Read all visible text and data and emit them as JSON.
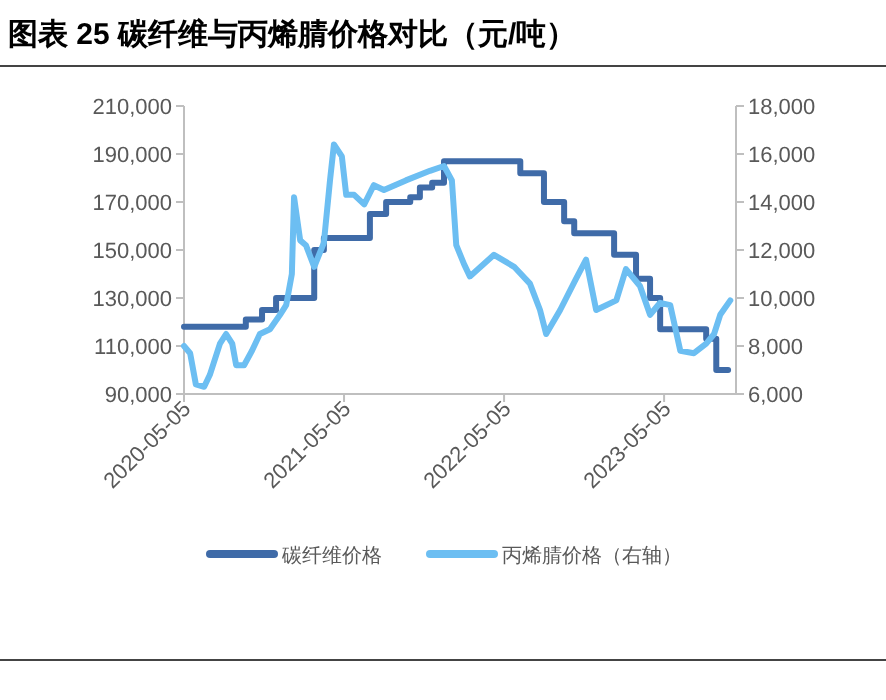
{
  "chart_data": {
    "type": "line",
    "title": "图表 25 碳纤维与丙烯腈价格对比（元/吨）",
    "xlim": [
      "2020-05-05",
      "2023-10-16"
    ],
    "xticks": [
      "2020-05-05",
      "2021-05-05",
      "2022-05-05",
      "2023-05-05"
    ],
    "ylim": [
      90000,
      210000
    ],
    "yticks": [
      {
        "value": 90000,
        "label": "90,000"
      },
      {
        "value": 110000,
        "label": "110,000"
      },
      {
        "value": 130000,
        "label": "130,000"
      },
      {
        "value": 150000,
        "label": "150,000"
      },
      {
        "value": 170000,
        "label": "170,000"
      },
      {
        "value": 190000,
        "label": "190,000"
      },
      {
        "value": 210000,
        "label": "210,000"
      }
    ],
    "y2lim": [
      6000,
      18000
    ],
    "y2ticks": [
      {
        "value": 6000,
        "label": "6,000"
      },
      {
        "value": 8000,
        "label": "8,000"
      },
      {
        "value": 10000,
        "label": "10,000"
      },
      {
        "value": 12000,
        "label": "12,000"
      },
      {
        "value": 14000,
        "label": "14,000"
      },
      {
        "value": 16000,
        "label": "16,000"
      },
      {
        "value": 18000,
        "label": "18,000"
      }
    ],
    "grid": false,
    "legend": "bottom",
    "series": [
      {
        "name": "碳纤维价格",
        "type": "step",
        "color": "#3f6ba8",
        "x": [
          "2020-05-05",
          "2020-09-23",
          "2020-10-30",
          "2020-12-01",
          "2021-02-26",
          "2021-03-20",
          "2021-07-03",
          "2021-08-09",
          "2021-10-03",
          "2021-10-25",
          "2021-11-22",
          "2021-12-19",
          "2022-06-11",
          "2022-08-04",
          "2022-09-19",
          "2022-10-12",
          "2023-01-11",
          "2023-03-02",
          "2023-04-03",
          "2023-04-26",
          "2023-08-09",
          "2023-09-01",
          "2023-09-28"
        ],
        "values": [
          118000,
          121000,
          125000,
          130000,
          150000,
          155000,
          165000,
          170000,
          172000,
          176000,
          178000,
          187000,
          182000,
          170000,
          162000,
          157000,
          148000,
          138000,
          130000,
          117000,
          113000,
          100000,
          100000
        ]
      },
      {
        "name": "丙烯腈价格（右轴）",
        "axis": "y2",
        "color": "#6cbef2",
        "x": [
          "2020-05-05",
          "2020-05-19",
          "2020-06-01",
          "2020-06-20",
          "2020-07-03",
          "2020-07-26",
          "2020-08-09",
          "2020-08-23",
          "2020-09-01",
          "2020-09-19",
          "2020-10-07",
          "2020-10-25",
          "2020-11-17",
          "2020-12-10",
          "2020-12-24",
          "2021-01-06",
          "2021-01-11",
          "2021-01-25",
          "2021-02-07",
          "2021-02-26",
          "2021-03-20",
          "2021-04-03",
          "2021-04-12",
          "2021-04-30",
          "2021-05-10",
          "2021-05-28",
          "2021-06-20",
          "2021-07-12",
          "2021-08-04",
          "2021-09-23",
          "2021-11-17",
          "2021-12-19",
          "2022-01-06",
          "2022-01-16",
          "2022-02-03",
          "2022-02-16",
          "2022-04-12",
          "2022-05-28",
          "2022-07-03",
          "2022-07-26",
          "2022-08-09",
          "2022-09-10",
          "2022-10-16",
          "2022-11-08",
          "2022-12-01",
          "2023-01-16",
          "2023-02-07",
          "2023-03-11",
          "2023-04-03",
          "2023-04-26",
          "2023-05-19",
          "2023-06-11",
          "2023-07-12",
          "2023-08-09",
          "2023-08-27",
          "2023-09-10",
          "2023-10-03"
        ],
        "values": [
          8000,
          7700,
          6400,
          6300,
          6800,
          8100,
          8500,
          8100,
          7200,
          7200,
          7800,
          8500,
          8700,
          9300,
          9700,
          11000,
          14200,
          12400,
          12200,
          11300,
          12300,
          14900,
          16400,
          15900,
          14300,
          14300,
          13900,
          14700,
          14500,
          14900,
          15300,
          15500,
          14900,
          12200,
          11400,
          10900,
          11800,
          11300,
          10600,
          9500,
          8500,
          9500,
          10800,
          11600,
          9500,
          9900,
          11200,
          10500,
          9300,
          9800,
          9700,
          7800,
          7700,
          8100,
          8500,
          9300,
          9900
        ]
      }
    ]
  }
}
